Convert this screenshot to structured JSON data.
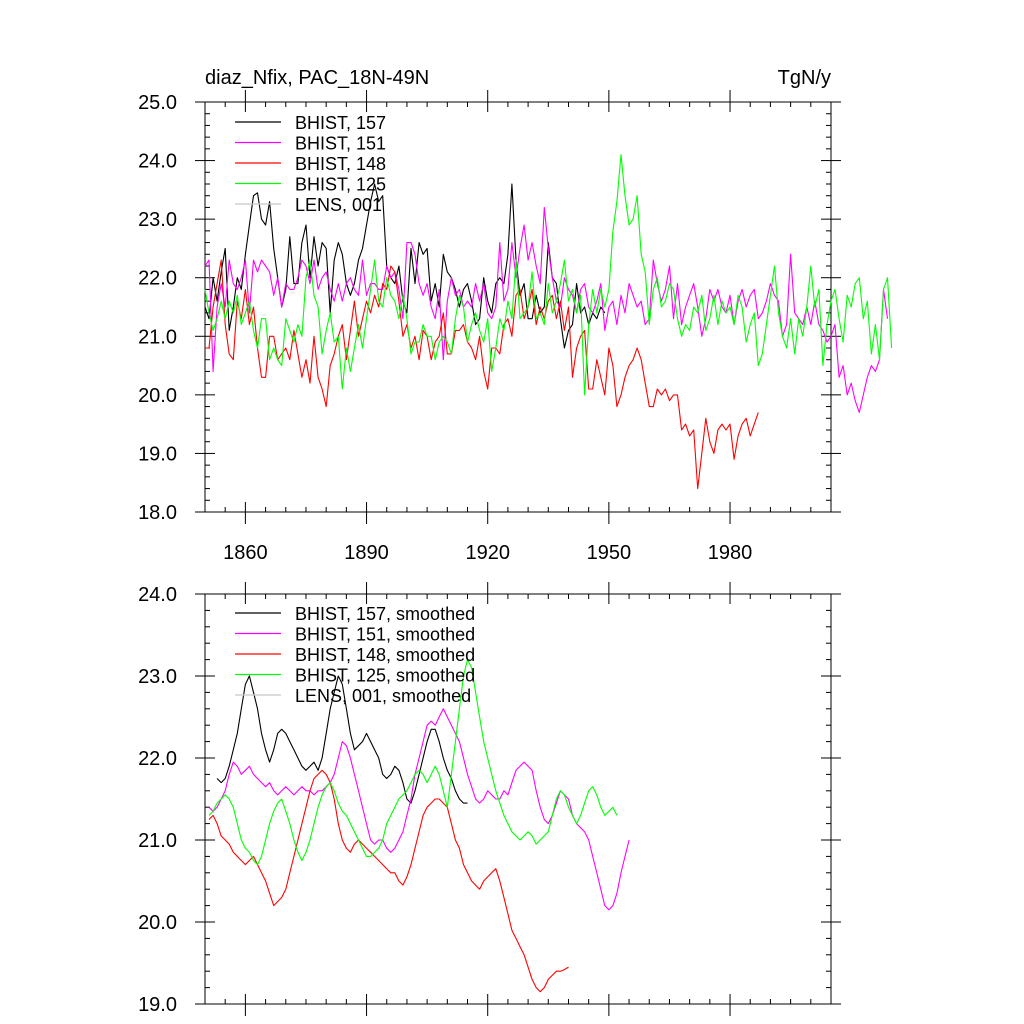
{
  "chart_data": [
    {
      "type": "line",
      "title": "diaz_Nfix, PAC_18N-49N",
      "units": "TgN/y",
      "xlim": [
        1850,
        2005
      ],
      "ylim": [
        18.0,
        25.0
      ],
      "x_ticks": [
        1860,
        1890,
        1920,
        1950,
        1980
      ],
      "y_ticks": [
        "18.0",
        "19.0",
        "20.0",
        "21.0",
        "22.0",
        "23.0",
        "24.0",
        "25.0"
      ],
      "legend_position": "top-left",
      "series": [
        {
          "name": "BHIST, 157",
          "color": "#000000",
          "start_year": 1850,
          "values": [
            21.5,
            21.3,
            22.0,
            21.6,
            22.1,
            22.5,
            21.1,
            21.5,
            22.0,
            21.8,
            22.4,
            22.9,
            23.4,
            23.45,
            23.0,
            22.9,
            23.3,
            22.5,
            22.0,
            21.5,
            21.8,
            22.7,
            21.9,
            21.9,
            22.6,
            22.9,
            22.0,
            22.7,
            22.2,
            22.6,
            22.5,
            21.4,
            22.3,
            22.6,
            22.4,
            21.9,
            21.7,
            21.9,
            22.3,
            22.5,
            22.9,
            23.3,
            23.6,
            23.3,
            23.4,
            22.2,
            22.0,
            21.9,
            22.2,
            21.6,
            21.4,
            22.5,
            21.9,
            22.6,
            22.4,
            22.5,
            21.6,
            21.9,
            21.5,
            22.4,
            22.1,
            22.0,
            21.8,
            21.5,
            21.8,
            21.9,
            21.6,
            21.2,
            21.3,
            22.0,
            21.6,
            21.4,
            21.9,
            22.0,
            21.9,
            22.4,
            23.6,
            22.3,
            21.7,
            21.9,
            21.3,
            21.3,
            21.7,
            21.4,
            21.5,
            22.6,
            22.0,
            21.9,
            21.3,
            20.8,
            21.1,
            21.2,
            21.9,
            21.4,
            21.5,
            21.2,
            21.4,
            21.3,
            21.5,
            21.4
          ]
        },
        {
          "name": "BHIST, 151",
          "color": "#ff00ff",
          "start_year": 1850,
          "values": [
            22.2,
            22.3,
            20.4,
            21.5,
            21.9,
            21.5,
            22.3,
            21.9,
            21.8,
            22.0,
            22.3,
            21.4,
            22.3,
            22.1,
            22.3,
            22.2,
            22.1,
            21.7,
            22.0,
            21.5,
            21.9,
            21.8,
            21.8,
            22.0,
            22.3,
            22.2,
            21.9,
            22.3,
            21.8,
            22.0,
            22.1,
            21.8,
            21.6,
            21.9,
            21.6,
            21.9,
            22.0,
            21.8,
            21.7,
            22.3,
            21.7,
            21.9,
            21.9,
            21.8,
            21.8,
            22.2,
            22.0,
            22.1,
            21.8,
            21.3,
            22.6,
            22.6,
            22.4,
            21.9,
            21.7,
            21.9,
            21.5,
            21.3,
            21.8,
            20.6,
            21.6,
            22.0,
            21.7,
            21.8,
            21.5,
            21.6,
            21.5,
            21.9,
            21.6,
            21.9,
            21.4,
            21.3,
            21.5,
            22.6,
            21.6,
            21.8,
            22.6,
            22.0,
            22.5,
            22.9,
            22.3,
            22.6,
            22.2,
            21.9,
            23.2,
            22.5,
            22.0,
            21.6,
            21.5,
            22.0,
            21.8,
            21.7,
            21.4,
            21.8,
            21.9,
            21.5,
            21.4,
            21.6,
            21.9,
            21.1,
            21.5,
            21.6,
            21.2,
            21.7,
            21.4,
            21.9,
            21.7,
            21.5,
            21.6,
            21.2,
            21.3,
            22.3,
            21.9,
            21.6,
            21.8,
            22.2,
            21.3,
            21.9,
            21.2,
            21.5,
            21.7,
            21.9,
            21.5,
            21.0,
            21.3,
            21.8,
            21.6,
            21.8,
            21.5,
            21.4,
            21.7,
            21.2,
            21.6,
            21.8,
            21.5,
            21.7,
            21.8,
            21.3,
            21.4,
            21.6,
            21.9,
            21.7,
            21.6,
            21.0,
            21.2,
            22.4,
            21.4,
            21.3,
            21.2,
            21.5,
            21.2,
            21.6,
            21.2,
            21.1,
            20.9,
            21.0,
            21.2,
            20.3,
            20.5,
            20.0,
            20.2,
            19.9,
            19.7,
            20.0,
            20.3,
            20.5,
            20.4,
            20.6,
            21.8,
            21.3
          ]
        },
        {
          "name": "BHIST, 148",
          "color": "#ff0000",
          "start_year": 1850,
          "values": [
            20.8,
            20.8,
            21.5,
            21.9,
            22.3,
            21.2,
            20.7,
            20.6,
            21.6,
            21.3,
            21.8,
            21.2,
            21.5,
            20.8,
            20.3,
            20.3,
            21.0,
            21.0,
            20.6,
            20.7,
            20.8,
            20.6,
            21.1,
            20.7,
            20.3,
            20.6,
            20.2,
            21.0,
            20.3,
            20.1,
            19.8,
            20.5,
            20.7,
            21.0,
            21.2,
            20.6,
            21.1,
            21.6,
            21.0,
            21.3,
            21.6,
            21.4,
            21.7,
            21.5,
            21.9,
            21.8,
            22.2,
            22.1,
            21.6,
            21.0,
            21.2,
            20.8,
            21.0,
            20.6,
            21.1,
            21.0,
            20.6,
            20.9,
            21.0,
            21.4,
            20.7,
            20.7,
            21.1,
            21.1,
            21.2,
            20.9,
            20.8,
            20.6,
            21.0,
            20.4,
            20.1,
            20.8,
            20.8,
            20.7,
            21.2,
            21.3,
            21.0,
            21.7,
            21.8,
            21.3,
            21.5,
            21.8,
            21.2,
            21.5,
            21.3,
            21.6,
            21.7,
            21.3,
            21.6,
            21.1,
            21.5,
            20.3,
            20.8,
            21.0,
            21.1,
            20.1,
            20.1,
            20.6,
            20.3,
            20.0,
            20.8,
            20.5,
            19.8,
            20.0,
            20.3,
            20.5,
            20.6,
            20.8,
            20.6,
            20.2,
            19.8,
            19.8,
            20.1,
            20.0,
            20.1,
            19.9,
            20.0,
            20.0,
            19.4,
            19.5,
            19.3,
            19.4,
            18.4,
            19.0,
            19.6,
            19.2,
            19.0,
            19.4,
            19.5,
            19.4,
            19.5,
            18.9,
            19.3,
            19.5,
            19.6,
            19.3,
            19.5,
            19.7
          ]
        },
        {
          "name": "BHIST, 125",
          "color": "#00ff00",
          "start_year": 1850,
          "values": [
            21.8,
            21.4,
            21.1,
            21.3,
            21.6,
            21.3,
            21.6,
            21.4,
            21.7,
            21.2,
            21.4,
            21.6,
            21.1,
            20.8,
            21.3,
            21.3,
            20.6,
            20.8,
            20.6,
            20.5,
            21.3,
            21.1,
            20.9,
            21.2,
            21.0,
            22.0,
            22.3,
            21.7,
            21.5,
            20.7,
            21.1,
            21.4,
            20.9,
            21.0,
            20.1,
            20.8,
            20.4,
            20.8,
            21.2,
            20.8,
            21.3,
            21.8,
            22.3,
            21.6,
            21.5,
            22.0,
            21.7,
            21.6,
            21.3,
            21.7,
            21.3,
            20.7,
            20.9,
            20.9,
            21.2,
            21.0,
            21.0,
            20.6,
            20.9,
            21.0,
            20.9,
            20.7,
            21.3,
            21.7,
            21.5,
            20.9,
            21.2,
            21.4,
            21.1,
            20.9,
            21.3,
            20.4,
            20.8,
            21.3,
            21.1,
            21.6,
            21.3,
            22.3,
            21.3,
            21.4,
            21.5,
            22.1,
            21.3,
            21.4,
            21.2,
            21.9,
            21.4,
            21.6,
            21.9,
            22.3,
            21.6,
            21.8,
            21.4,
            21.7,
            20.0,
            21.2,
            21.8,
            21.4,
            21.8,
            21.5,
            21.8,
            22.8,
            23.3,
            24.1,
            23.4,
            22.9,
            23.0,
            23.4,
            22.4,
            22.1,
            21.2,
            21.8,
            22.0,
            21.5,
            21.6,
            21.9,
            21.8,
            21.3,
            21.0,
            21.2,
            21.1,
            21.5,
            21.4,
            21.7,
            21.1,
            21.3,
            21.7,
            21.2,
            21.6,
            21.4,
            21.5,
            21.2,
            21.7,
            21.5,
            20.9,
            21.2,
            21.4,
            20.5,
            20.7,
            21.2,
            21.7,
            22.2,
            21.4,
            21.0,
            20.8,
            21.3,
            20.7,
            21.3,
            21.0,
            21.5,
            22.2,
            21.5,
            21.8,
            20.5,
            21.2,
            21.6,
            21.8,
            21.3,
            20.9,
            21.7,
            21.5,
            21.9,
            22.0,
            21.3,
            21.6,
            20.7,
            21.2,
            20.6,
            21.8,
            22.0,
            20.8
          ]
        },
        {
          "name": "LENS, 001",
          "color": "#c8c8c8",
          "start_year": 1850,
          "values": []
        }
      ]
    },
    {
      "type": "line",
      "title": "",
      "xlim": [
        1850,
        2005
      ],
      "ylim": [
        19.0,
        24.0
      ],
      "x_ticks": [
        1860,
        1890,
        1920,
        1950,
        1980
      ],
      "y_ticks": [
        "19.0",
        "20.0",
        "21.0",
        "22.0",
        "23.0",
        "24.0"
      ],
      "legend_position": "top-left",
      "series": [
        {
          "name": "BHIST, 157, smoothed",
          "color": "#000000",
          "start_year": 1853,
          "values": [
            21.75,
            21.7,
            21.75,
            21.9,
            22.1,
            22.3,
            22.6,
            22.9,
            23.0,
            22.8,
            22.6,
            22.3,
            22.1,
            21.95,
            22.1,
            22.3,
            22.35,
            22.3,
            22.2,
            22.1,
            22.0,
            21.9,
            21.85,
            21.9,
            21.95,
            21.85,
            22.0,
            22.3,
            22.6,
            22.8,
            23.0,
            22.9,
            22.6,
            22.3,
            22.1,
            22.15,
            22.2,
            22.3,
            22.2,
            22.1,
            22.0,
            21.8,
            21.75,
            21.8,
            21.9,
            21.85,
            21.7,
            21.5,
            21.45,
            21.6,
            21.8,
            22.0,
            22.2,
            22.35,
            22.35,
            22.2,
            22.0,
            21.85,
            21.75,
            21.6,
            21.5,
            21.45,
            21.45
          ]
        },
        {
          "name": "BHIST, 151, smoothed",
          "color": "#ff00ff",
          "start_year": 1851,
          "values": [
            21.4,
            21.35,
            21.4,
            21.5,
            21.6,
            21.8,
            21.95,
            21.9,
            21.8,
            21.85,
            21.9,
            21.8,
            21.75,
            21.7,
            21.65,
            21.7,
            21.6,
            21.55,
            21.6,
            21.65,
            21.6,
            21.55,
            21.6,
            21.65,
            21.6,
            21.6,
            21.55,
            21.6,
            21.6,
            21.65,
            21.7,
            21.8,
            22.0,
            22.2,
            22.15,
            22.0,
            21.8,
            21.6,
            21.4,
            21.2,
            21.0,
            20.95,
            21.0,
            21.0,
            20.9,
            20.85,
            20.9,
            21.0,
            21.1,
            21.3,
            21.5,
            21.8,
            22.0,
            22.2,
            22.4,
            22.45,
            22.4,
            22.5,
            22.6,
            22.5,
            22.4,
            22.3,
            22.2,
            22.0,
            21.8,
            21.65,
            21.5,
            21.45,
            21.5,
            21.6,
            21.55,
            21.5,
            21.5,
            21.6,
            21.55,
            21.7,
            21.85,
            21.9,
            21.95,
            21.9,
            21.85,
            21.6,
            21.4,
            21.25,
            21.2,
            21.3,
            21.45,
            21.6,
            21.55,
            21.5,
            21.3,
            21.2,
            21.15,
            21.1,
            21.0,
            20.8,
            20.6,
            20.4,
            20.2,
            20.15,
            20.2,
            20.35,
            20.6,
            20.8,
            21.0
          ]
        },
        {
          "name": "BHIST, 148, smoothed",
          "color": "#ff0000",
          "start_year": 1851,
          "values": [
            21.25,
            21.3,
            21.2,
            21.05,
            21.0,
            20.95,
            20.85,
            20.8,
            20.75,
            20.7,
            20.75,
            20.8,
            20.7,
            20.6,
            20.5,
            20.35,
            20.2,
            20.25,
            20.3,
            20.4,
            20.6,
            20.8,
            21.0,
            21.2,
            21.4,
            21.6,
            21.75,
            21.8,
            21.85,
            21.8,
            21.7,
            21.5,
            21.2,
            21.0,
            20.9,
            20.85,
            20.95,
            21.0,
            20.95,
            20.9,
            20.85,
            20.8,
            20.75,
            20.7,
            20.65,
            20.6,
            20.6,
            20.5,
            20.45,
            20.55,
            20.7,
            20.9,
            21.1,
            21.3,
            21.4,
            21.45,
            21.5,
            21.5,
            21.45,
            21.4,
            21.2,
            21.0,
            20.9,
            20.7,
            20.6,
            20.5,
            20.45,
            20.4,
            20.5,
            20.55,
            20.6,
            20.65,
            20.5,
            20.3,
            20.1,
            19.9,
            19.8,
            19.7,
            19.6,
            19.45,
            19.3,
            19.2,
            19.15,
            19.2,
            19.3,
            19.35,
            19.4,
            19.4,
            19.42,
            19.45
          ]
        },
        {
          "name": "BHIST, 125, smoothed",
          "color": "#00ff00",
          "start_year": 1851,
          "values": [
            21.3,
            21.35,
            21.45,
            21.5,
            21.55,
            21.5,
            21.4,
            21.2,
            21.0,
            20.9,
            20.85,
            20.75,
            20.7,
            20.8,
            21.0,
            21.2,
            21.35,
            21.45,
            21.5,
            21.35,
            21.2,
            21.0,
            20.85,
            20.75,
            20.85,
            21.0,
            21.2,
            21.4,
            21.55,
            21.65,
            21.7,
            21.6,
            21.45,
            21.35,
            21.3,
            21.2,
            21.1,
            21.0,
            20.9,
            20.8,
            20.8,
            20.85,
            20.9,
            21.0,
            21.2,
            21.3,
            21.4,
            21.5,
            21.55,
            21.6,
            21.7,
            21.8,
            21.85,
            21.8,
            21.7,
            21.8,
            21.9,
            21.8,
            21.6,
            21.4,
            21.8,
            22.2,
            22.6,
            23.0,
            23.2,
            23.1,
            22.8,
            22.5,
            22.2,
            22.0,
            21.8,
            21.6,
            21.45,
            21.3,
            21.2,
            21.1,
            21.05,
            21.0,
            21.05,
            21.1,
            21.05,
            20.95,
            21.0,
            21.05,
            21.1,
            21.3,
            21.5,
            21.6,
            21.55,
            21.4,
            21.3,
            21.2,
            21.3,
            21.45,
            21.6,
            21.65,
            21.55,
            21.4,
            21.3,
            21.35,
            21.4,
            21.3
          ]
        },
        {
          "name": "LENS, 001, smoothed",
          "color": "#c8c8c8",
          "start_year": 1850,
          "values": []
        }
      ]
    }
  ]
}
